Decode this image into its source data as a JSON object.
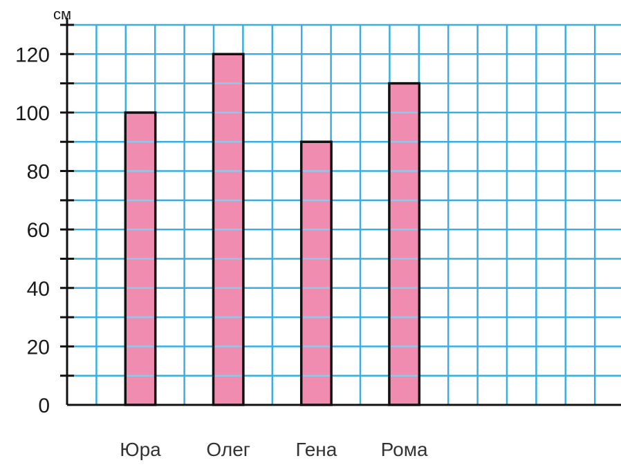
{
  "chart_data": {
    "type": "bar",
    "unit": "см",
    "categories": [
      "Юра",
      "Олег",
      "Гена",
      "Рома"
    ],
    "values": [
      100,
      120,
      90,
      110
    ],
    "yticks": [
      "0",
      "20",
      "40",
      "60",
      "80",
      "100",
      "120"
    ],
    "ylim": [
      0,
      130
    ],
    "ygrid_step": 10,
    "grid": true,
    "colors": {
      "bar_fill": "#f08cb0",
      "bar_stroke": "#111111",
      "grid": "#3aaee0",
      "axis": "#111111"
    }
  }
}
